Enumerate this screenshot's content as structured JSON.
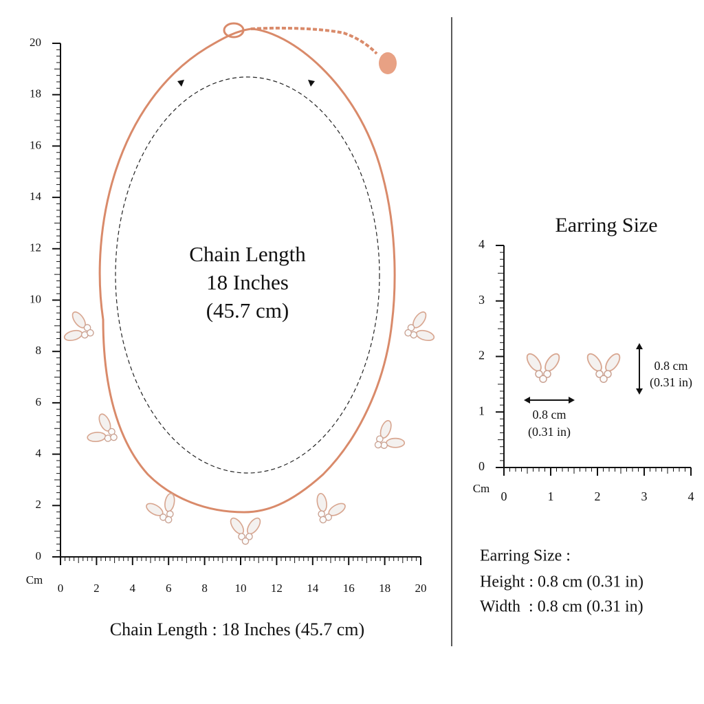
{
  "necklace": {
    "chain_label": [
      "Chain Length",
      "18 Inches",
      "(45.7 cm)"
    ],
    "caption": "Chain Length : 18 Inches (45.7 cm)",
    "ruler": {
      "unit": "Cm",
      "x_ticks": [
        0,
        2,
        4,
        6,
        8,
        10,
        12,
        14,
        16,
        18,
        20
      ],
      "y_ticks": [
        0,
        2,
        4,
        6,
        8,
        10,
        12,
        14,
        16,
        18,
        20
      ]
    }
  },
  "earring": {
    "title": "Earring Size",
    "ruler": {
      "unit": "Cm",
      "x_ticks": [
        0,
        1,
        2,
        3,
        4
      ],
      "y_ticks": [
        0,
        1,
        2,
        3,
        4
      ]
    },
    "width_label": [
      "0.8 cm",
      "(0.31 in)"
    ],
    "height_label": [
      "0.8 cm",
      "(0.31 in)"
    ],
    "specs": {
      "heading": "Earring Size :",
      "lines": [
        "Height : 0.8 cm (0.31 in)",
        "Width  : 0.8 cm (0.31 in)"
      ]
    }
  }
}
